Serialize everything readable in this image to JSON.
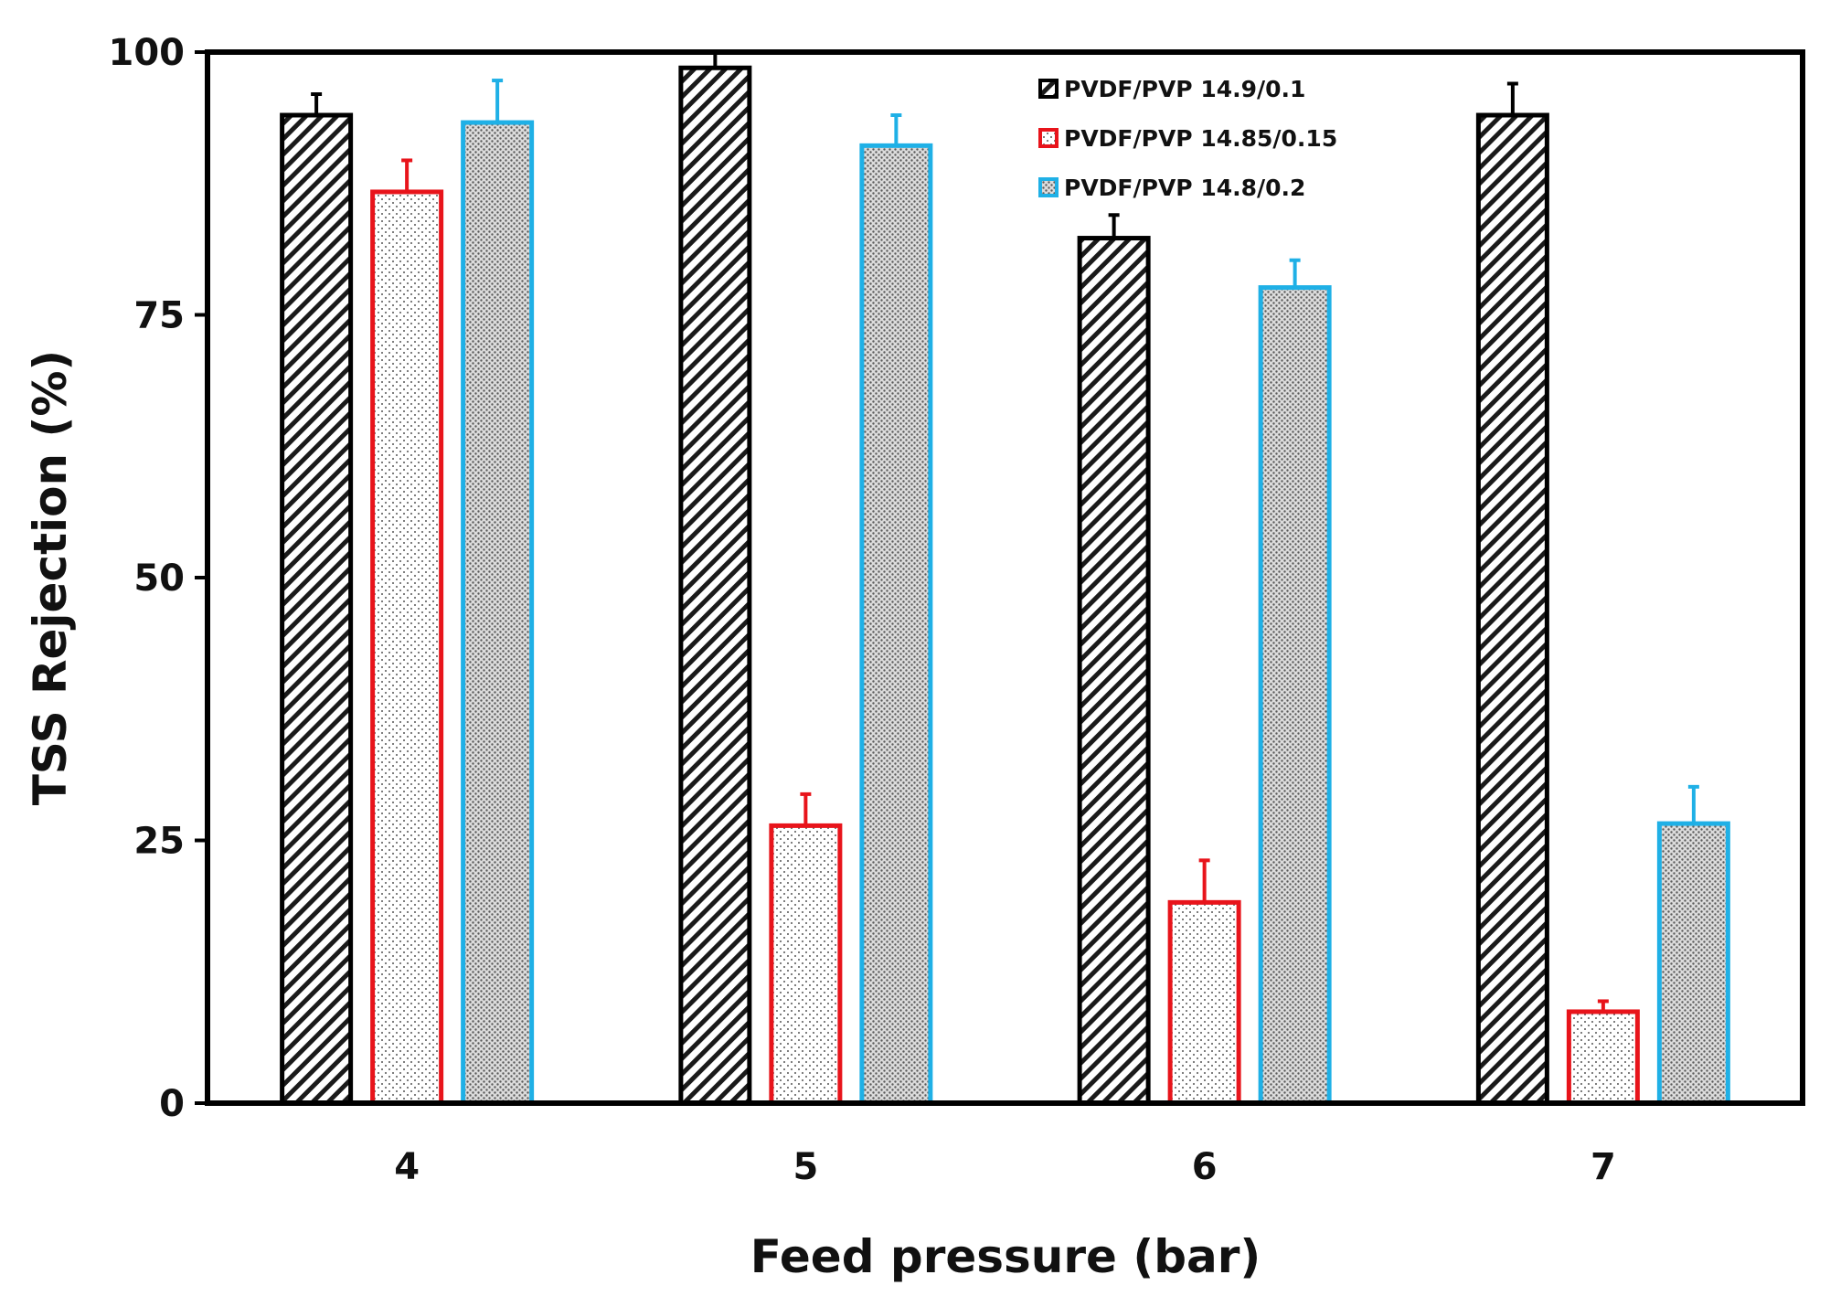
{
  "chart_data": {
    "type": "bar",
    "title": "",
    "xlabel": "Feed pressure (bar)",
    "ylabel": "TSS Rejection (%)",
    "categories": [
      "4",
      "5",
      "6",
      "7"
    ],
    "ylim": [
      0,
      100
    ],
    "yticks": [
      0,
      25,
      50,
      75,
      100
    ],
    "grid": false,
    "legend_position": "top-right",
    "series": [
      {
        "name": "PVDF/PVP 14.9/0.1",
        "color": "#000000",
        "pattern": "diagonal-hatch",
        "values": [
          94.0,
          98.5,
          82.3,
          94.0
        ],
        "errors": [
          2.0,
          1.5,
          2.2,
          3.0
        ]
      },
      {
        "name": "PVDF/PVP 14.85/0.15",
        "color": "#e8141b",
        "pattern": "fine-dots",
        "values": [
          86.7,
          26.4,
          19.1,
          8.7
        ],
        "errors": [
          3.0,
          3.0,
          4.0,
          1.0
        ]
      },
      {
        "name": "PVDF/PVP 14.8/0.2",
        "color": "#1fb0e6",
        "pattern": "dense-dots",
        "values": [
          93.3,
          91.1,
          77.6,
          26.6
        ],
        "errors": [
          4.0,
          2.9,
          2.6,
          3.5
        ]
      }
    ]
  }
}
